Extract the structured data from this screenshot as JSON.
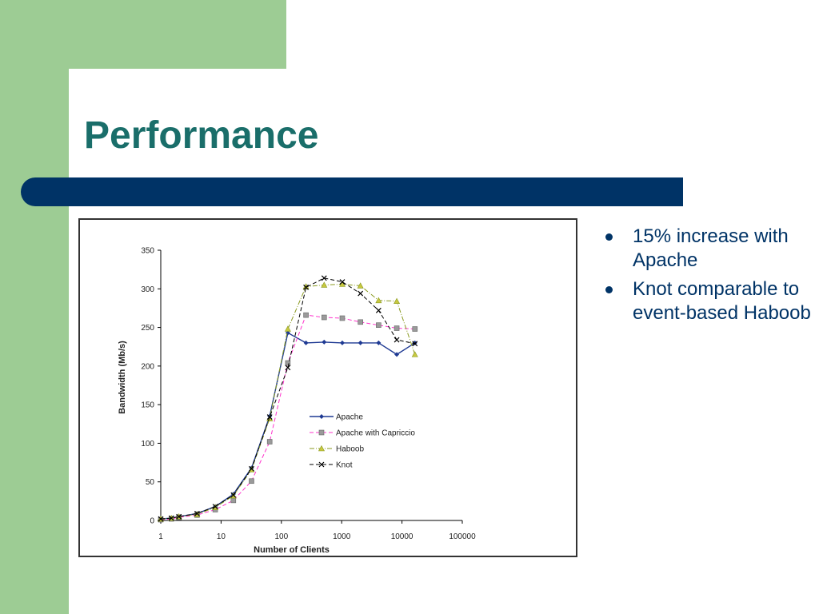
{
  "slide": {
    "title": "Performance",
    "bullets": [
      "15% increase with Apache",
      "Knot comparable to event-based Haboob"
    ],
    "colors": {
      "accent_green": "#9dcc94",
      "title_teal": "#1a6e6a",
      "bar_navy": "#003366"
    }
  },
  "chart_data": {
    "type": "line",
    "xlabel": "Number of Clients",
    "ylabel": "Bandwidth (Mb/s)",
    "x_scale": "log",
    "xlim": [
      1,
      100000
    ],
    "ylim": [
      0,
      350
    ],
    "x_ticks": [
      "1",
      "10",
      "100",
      "1000",
      "10000",
      "100000"
    ],
    "y_ticks": [
      "0",
      "50",
      "100",
      "150",
      "200",
      "250",
      "300",
      "350"
    ],
    "grid": false,
    "legend_position": "center-right",
    "series": [
      {
        "name": "Apache",
        "color": "#1f3a93",
        "marker": "diamond",
        "dash": "solid",
        "x": [
          1,
          1.5,
          2,
          4,
          8,
          16,
          32,
          64,
          128,
          256,
          512,
          1024,
          2048,
          4096,
          8192,
          16384
        ],
        "y": [
          2,
          3,
          5,
          9,
          18,
          34,
          68,
          135,
          243,
          230,
          231,
          230,
          230,
          230,
          215,
          230
        ]
      },
      {
        "name": "Apache with Capriccio",
        "color": "#ff33cc",
        "marker": "square",
        "dash": "dashed",
        "x": [
          1,
          1.5,
          2,
          4,
          8,
          16,
          32,
          64,
          128,
          256,
          512,
          1024,
          2048,
          4096,
          8192,
          16384
        ],
        "y": [
          1,
          2,
          4,
          7,
          14,
          26,
          51,
          102,
          204,
          266,
          263,
          262,
          257,
          253,
          249,
          248
        ]
      },
      {
        "name": "Haboob",
        "color": "#8a9a20",
        "marker": "triangle",
        "dash": "dashdot",
        "x": [
          1,
          1.5,
          2,
          4,
          8,
          16,
          32,
          64,
          128,
          256,
          512,
          1024,
          2048,
          4096,
          8192,
          16384
        ],
        "y": [
          2,
          3,
          5,
          8,
          17,
          32,
          66,
          132,
          248,
          303,
          305,
          306,
          304,
          285,
          284,
          215
        ]
      },
      {
        "name": "Knot",
        "color": "#000000",
        "marker": "x",
        "dash": "dashed",
        "x": [
          1,
          1.5,
          2,
          4,
          8,
          16,
          32,
          64,
          128,
          256,
          512,
          1024,
          2048,
          4096,
          8192,
          16384
        ],
        "y": [
          2,
          3,
          5,
          9,
          18,
          33,
          67,
          134,
          198,
          302,
          314,
          309,
          294,
          272,
          234,
          229
        ]
      }
    ]
  }
}
